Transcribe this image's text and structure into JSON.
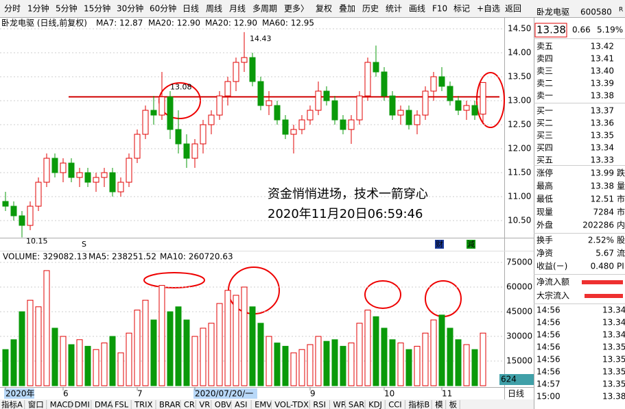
{
  "toolbar": {
    "items": [
      "分时",
      "1分钟",
      "5分钟",
      "15分钟",
      "30分钟",
      "60分钟",
      "日线",
      "周线",
      "月线",
      "多周期",
      "更多〉",
      "复权",
      "叠加",
      "历史",
      "统计",
      "画线",
      "F10",
      "标记",
      "+自选",
      "返回"
    ],
    "active": [
      "日线",
      "画线"
    ]
  },
  "chart_data": {
    "type": "candlestick",
    "title": "卧龙电驱 (日线,前复权)",
    "indicators": [
      "MA7: 12.87",
      "MA20: 12.90",
      "MA20: 12.90",
      "MA60: 12.95"
    ],
    "categories": [
      "2020年",
      null,
      null,
      null,
      null,
      null,
      null,
      "6",
      null,
      null,
      null,
      null,
      null,
      null,
      null,
      null,
      "7",
      null,
      null,
      null,
      null,
      null,
      null,
      "2020/07/20/一",
      null,
      null,
      null,
      null,
      null,
      null,
      null,
      null,
      null,
      null,
      null,
      null,
      null,
      "9",
      null,
      null,
      null,
      null,
      null,
      null,
      null,
      null,
      "10",
      null,
      null,
      null,
      null,
      null,
      null,
      "11",
      null,
      null,
      null,
      null,
      null
    ],
    "candles": [
      [
        10.9,
        11.1,
        10.7,
        10.8
      ],
      [
        10.8,
        10.9,
        10.5,
        10.6
      ],
      [
        10.6,
        10.7,
        10.15,
        10.4
      ],
      [
        10.4,
        10.9,
        10.3,
        10.8
      ],
      [
        10.8,
        11.4,
        10.7,
        11.3
      ],
      [
        11.3,
        11.9,
        11.2,
        11.8
      ],
      [
        11.8,
        11.9,
        11.4,
        11.5
      ],
      [
        11.5,
        11.8,
        11.3,
        11.7
      ],
      [
        11.7,
        11.8,
        11.3,
        11.4
      ],
      [
        11.4,
        11.6,
        11.2,
        11.5
      ],
      [
        11.5,
        11.6,
        11.2,
        11.3
      ],
      [
        11.3,
        11.5,
        11.1,
        11.4
      ],
      [
        11.4,
        11.6,
        11.2,
        11.5
      ],
      [
        11.5,
        11.6,
        11.0,
        11.1
      ],
      [
        11.1,
        11.4,
        11.0,
        11.3
      ],
      [
        11.3,
        11.9,
        11.2,
        11.8
      ],
      [
        11.8,
        12.4,
        11.7,
        12.3
      ],
      [
        12.3,
        12.9,
        12.2,
        12.8
      ],
      [
        12.8,
        13.1,
        12.5,
        12.7
      ],
      [
        12.7,
        13.6,
        12.6,
        13.08
      ],
      [
        13.08,
        13.2,
        12.2,
        12.4
      ],
      [
        12.4,
        12.8,
        11.9,
        12.1
      ],
      [
        12.1,
        12.3,
        11.6,
        11.8
      ],
      [
        11.8,
        12.2,
        11.6,
        12.1
      ],
      [
        12.1,
        12.6,
        11.9,
        12.5
      ],
      [
        12.5,
        12.8,
        12.3,
        12.7
      ],
      [
        12.7,
        13.2,
        12.6,
        13.1
      ],
      [
        13.1,
        13.5,
        12.9,
        13.4
      ],
      [
        13.4,
        13.9,
        13.2,
        13.8
      ],
      [
        13.8,
        14.43,
        13.6,
        13.9
      ],
      [
        13.9,
        14.0,
        13.3,
        13.4
      ],
      [
        13.4,
        13.5,
        12.8,
        12.9
      ],
      [
        12.9,
        13.2,
        12.7,
        13.0
      ],
      [
        12.9,
        13.0,
        12.5,
        12.6
      ],
      [
        12.6,
        12.7,
        12.2,
        12.3
      ],
      [
        12.3,
        12.5,
        11.9,
        12.4
      ],
      [
        12.4,
        12.7,
        12.3,
        12.6
      ],
      [
        12.6,
        12.9,
        12.5,
        12.8
      ],
      [
        12.8,
        13.4,
        12.7,
        13.2
      ],
      [
        13.2,
        13.3,
        12.9,
        13.0
      ],
      [
        13.0,
        13.1,
        12.5,
        12.6
      ],
      [
        12.6,
        12.7,
        12.3,
        12.4
      ],
      [
        12.4,
        12.7,
        12.1,
        12.6
      ],
      [
        12.6,
        13.2,
        12.5,
        13.1
      ],
      [
        13.1,
        13.9,
        13.0,
        13.8
      ],
      [
        13.8,
        14.15,
        13.5,
        13.6
      ],
      [
        13.6,
        13.7,
        13.0,
        13.1
      ],
      [
        13.1,
        13.2,
        12.6,
        12.7
      ],
      [
        12.7,
        12.9,
        12.5,
        12.8
      ],
      [
        12.8,
        12.9,
        12.4,
        12.5
      ],
      [
        12.5,
        12.8,
        12.3,
        12.7
      ],
      [
        12.7,
        13.3,
        12.6,
        13.2
      ],
      [
        13.2,
        13.6,
        13.0,
        13.5
      ],
      [
        13.5,
        13.7,
        13.2,
        13.3
      ],
      [
        13.3,
        13.4,
        12.9,
        13.0
      ],
      [
        13.0,
        13.1,
        12.7,
        12.8
      ],
      [
        12.8,
        13.0,
        12.6,
        12.9
      ],
      [
        12.9,
        13.0,
        12.6,
        12.7
      ],
      [
        12.72,
        13.38,
        12.51,
        13.38
      ]
    ],
    "volumes": [
      22000,
      28000,
      45000,
      52000,
      48000,
      70000,
      35000,
      30000,
      25000,
      28000,
      24000,
      22000,
      26000,
      30000,
      20000,
      32000,
      46000,
      52000,
      40000,
      61000,
      45000,
      48000,
      40000,
      30000,
      35000,
      38000,
      50000,
      58000,
      55000,
      60000,
      48000,
      38000,
      30000,
      26000,
      24000,
      20000,
      22000,
      25000,
      30000,
      27000,
      28000,
      24000,
      26000,
      38000,
      46000,
      42000,
      35000,
      28000,
      26000,
      22000,
      24000,
      32000,
      40000,
      43000,
      35000,
      28000,
      25000,
      22000,
      32000
    ],
    "up_color": "#e00000",
    "down_color": "#0a9a0a",
    "level_line": 13.08,
    "level_color": "#d00000",
    "ylim": [
      10.0,
      14.72
    ],
    "yticks": [
      {
        "value": 14.5,
        "label": "14.50"
      },
      {
        "value": 14.0,
        "label": "14.00"
      },
      {
        "value": 13.5,
        "label": "13.50"
      },
      {
        "value": 13.0,
        "label": "13.00"
      },
      {
        "value": 12.5,
        "label": "12.50"
      },
      {
        "value": 12.0,
        "label": "12.00"
      },
      {
        "value": 11.5,
        "label": "11.50"
      },
      {
        "value": 11.0,
        "label": "11.00"
      },
      {
        "value": 10.5,
        "label": "10.50"
      }
    ],
    "volume_header": [
      "VOLUME: 329082.13",
      "MA5: 238251.52",
      "MA10: 260720.63"
    ],
    "y2lim": [
      0,
      80000
    ],
    "y2ticks": [
      75000,
      60000,
      45000,
      30000,
      15000
    ],
    "cursor_label": "624",
    "markers": [
      "S",
      "财",
      "減"
    ],
    "annotation": [
      "资金悄悄进场，技术一箭穿心",
      "2020年11月20日06:59:46"
    ]
  },
  "quote": {
    "name": "卧龙电驱",
    "code": "600580",
    "flag": "R",
    "price": "13.38",
    "change": "0.66",
    "pct": "5.19%",
    "book": [
      [
        "卖五",
        "13.42"
      ],
      [
        "卖四",
        "13.41"
      ],
      [
        "卖三",
        "13.40"
      ],
      [
        "卖二",
        "13.39"
      ],
      [
        "卖一",
        "13.38"
      ],
      [
        "买一",
        "13.37"
      ],
      [
        "买二",
        "13.36"
      ],
      [
        "买三",
        "13.35"
      ],
      [
        "买四",
        "13.34"
      ],
      [
        "买五",
        "13.33"
      ]
    ],
    "stats": [
      [
        "涨停",
        "13.99",
        "跌",
        "#e00000"
      ],
      [
        "最高",
        "13.38",
        "量",
        "#e00000"
      ],
      [
        "最低",
        "12.51",
        "市",
        "#0a9a0a"
      ],
      [
        "现量",
        "7284",
        "市",
        "#0000cc"
      ],
      [
        "外盘",
        "202286",
        "内",
        "#e00000"
      ]
    ],
    "fin": [
      [
        "换手",
        "2.52%",
        "股"
      ],
      [
        "净资",
        "5.67",
        "流"
      ],
      [
        "收益(ㄧ)",
        "0.480",
        "PI"
      ]
    ],
    "flows": [
      "净流入额",
      "大宗流入"
    ],
    "trades": [
      [
        "14:56",
        "13.34"
      ],
      [
        "14:56",
        "13.34"
      ],
      [
        "14:56",
        "13.34"
      ],
      [
        "14:56",
        "13.35"
      ],
      [
        "14:56",
        "13.35"
      ],
      [
        "14:56",
        "13.35"
      ],
      [
        "14:57",
        "13.35"
      ],
      [
        "15:00",
        "13.38"
      ]
    ]
  },
  "bottom_tabs": [
    "指标A",
    "窗口",
    "MACD",
    "DMI",
    "DMA",
    "FSL",
    "TRIX",
    "BRAR",
    "CR",
    "VR",
    "OBV",
    "ASI",
    "EMV",
    "VOL-TDX",
    "RSI",
    "WR",
    "SAR",
    "KDJ",
    "CCI",
    "指标B",
    "模",
    "板"
  ],
  "period": "日线"
}
